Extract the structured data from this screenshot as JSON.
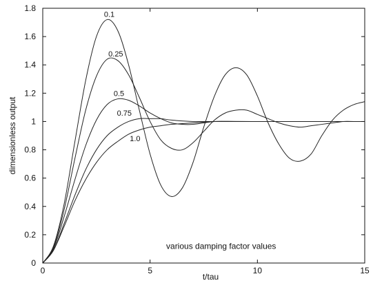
{
  "chart_data": {
    "type": "line",
    "title": "",
    "xlabel": "t/tau",
    "ylabel": "dimensionless output",
    "xlim": [
      0,
      15
    ],
    "ylim": [
      0,
      1.8
    ],
    "x_ticks": [
      0,
      5,
      10,
      15
    ],
    "x_tick_labels": [
      "0",
      "5",
      "10",
      "15"
    ],
    "y_ticks": [
      0,
      0.2,
      0.4,
      0.6,
      0.8,
      1.0,
      1.2,
      1.4,
      1.6,
      1.8
    ],
    "y_tick_labels": [
      "0",
      "0.2",
      "0.4",
      "0.6",
      "0.8",
      "1",
      "1.2",
      "1.4",
      "1.6",
      "1.8"
    ],
    "grid": false,
    "annotation": "various damping factor values",
    "series": [
      {
        "name": "0.1",
        "label": {
          "text": "0.1",
          "x": 3.1,
          "y": 1.74
        },
        "points": [
          [
            0,
            0
          ],
          [
            0.5,
            0.12
          ],
          [
            1,
            0.42
          ],
          [
            1.5,
            0.86
          ],
          [
            2,
            1.29
          ],
          [
            2.5,
            1.6
          ],
          [
            3.0,
            1.72
          ],
          [
            3.5,
            1.64
          ],
          [
            4.0,
            1.4
          ],
          [
            4.5,
            1.08
          ],
          [
            5.0,
            0.77
          ],
          [
            5.5,
            0.55
          ],
          [
            6.0,
            0.47
          ],
          [
            6.5,
            0.53
          ],
          [
            7.0,
            0.71
          ],
          [
            7.5,
            0.96
          ],
          [
            8.0,
            1.18
          ],
          [
            8.5,
            1.33
          ],
          [
            9.0,
            1.38
          ],
          [
            9.5,
            1.33
          ],
          [
            10.0,
            1.18
          ],
          [
            10.5,
            0.99
          ],
          [
            11.0,
            0.84
          ],
          [
            11.5,
            0.74
          ],
          [
            12.0,
            0.72
          ],
          [
            12.5,
            0.77
          ],
          [
            13.0,
            0.9
          ],
          [
            13.5,
            1.01
          ],
          [
            14.0,
            1.08
          ],
          [
            14.5,
            1.12
          ],
          [
            15.0,
            1.14
          ]
        ]
      },
      {
        "name": "0.25",
        "label": {
          "text": "0.25",
          "x": 3.4,
          "y": 1.46
        },
        "points": [
          [
            0,
            0
          ],
          [
            0.5,
            0.11
          ],
          [
            1,
            0.38
          ],
          [
            1.5,
            0.74
          ],
          [
            2,
            1.08
          ],
          [
            2.5,
            1.32
          ],
          [
            3.0,
            1.44
          ],
          [
            3.5,
            1.43
          ],
          [
            4.0,
            1.33
          ],
          [
            4.5,
            1.17
          ],
          [
            5.0,
            1.0
          ],
          [
            5.5,
            0.87
          ],
          [
            6.0,
            0.81
          ],
          [
            6.5,
            0.8
          ],
          [
            7.0,
            0.85
          ],
          [
            7.5,
            0.93
          ],
          [
            8.0,
            1.01
          ],
          [
            8.5,
            1.06
          ],
          [
            9.0,
            1.08
          ],
          [
            9.5,
            1.08
          ],
          [
            10.0,
            1.05
          ],
          [
            10.5,
            1.02
          ],
          [
            11.0,
            0.99
          ],
          [
            11.5,
            0.97
          ],
          [
            12.0,
            0.96
          ],
          [
            12.5,
            0.97
          ],
          [
            13.0,
            0.98
          ],
          [
            13.5,
            0.99
          ],
          [
            14.0,
            1.0
          ],
          [
            14.5,
            1.0
          ],
          [
            15.0,
            1.0
          ]
        ]
      },
      {
        "name": "0.5",
        "label": {
          "text": "0.5",
          "x": 3.55,
          "y": 1.18
        },
        "points": [
          [
            0,
            0
          ],
          [
            0.5,
            0.1
          ],
          [
            1,
            0.33
          ],
          [
            1.5,
            0.59
          ],
          [
            2,
            0.83
          ],
          [
            2.5,
            1.01
          ],
          [
            3.0,
            1.12
          ],
          [
            3.5,
            1.16
          ],
          [
            4.0,
            1.15
          ],
          [
            4.5,
            1.11
          ],
          [
            5.0,
            1.06
          ],
          [
            5.5,
            1.02
          ],
          [
            6.0,
            0.99
          ],
          [
            6.5,
            0.98
          ],
          [
            7.0,
            0.98
          ],
          [
            7.5,
            0.99
          ],
          [
            8.0,
            1.0
          ],
          [
            9.0,
            1.0
          ],
          [
            10.0,
            1.0
          ],
          [
            11.0,
            1.0
          ],
          [
            12.0,
            1.0
          ],
          [
            13.0,
            1.0
          ],
          [
            14.0,
            1.0
          ],
          [
            15.0,
            1.0
          ]
        ]
      },
      {
        "name": "0.75",
        "label": {
          "text": "0.75",
          "x": 3.8,
          "y": 1.04
        },
        "points": [
          [
            0,
            0
          ],
          [
            0.5,
            0.09
          ],
          [
            1,
            0.28
          ],
          [
            1.5,
            0.48
          ],
          [
            2,
            0.66
          ],
          [
            2.5,
            0.8
          ],
          [
            3.0,
            0.9
          ],
          [
            3.5,
            0.96
          ],
          [
            4.0,
            1.0
          ],
          [
            4.5,
            1.02
          ],
          [
            5.0,
            1.02
          ],
          [
            5.5,
            1.02
          ],
          [
            6.0,
            1.01
          ],
          [
            7.0,
            1.0
          ],
          [
            8.0,
            1.0
          ],
          [
            10.0,
            1.0
          ],
          [
            12.0,
            1.0
          ],
          [
            15.0,
            1.0
          ]
        ]
      },
      {
        "name": "1.0",
        "label": {
          "text": "1.0",
          "x": 4.3,
          "y": 0.86
        },
        "points": [
          [
            0,
            0
          ],
          [
            0.5,
            0.09
          ],
          [
            1,
            0.26
          ],
          [
            1.5,
            0.44
          ],
          [
            2,
            0.59
          ],
          [
            2.5,
            0.71
          ],
          [
            3.0,
            0.8
          ],
          [
            3.5,
            0.86
          ],
          [
            4.0,
            0.91
          ],
          [
            4.5,
            0.94
          ],
          [
            5.0,
            0.96
          ],
          [
            5.5,
            0.97
          ],
          [
            6.0,
            0.98
          ],
          [
            7.0,
            0.99
          ],
          [
            8.0,
            1.0
          ],
          [
            10.0,
            1.0
          ],
          [
            12.0,
            1.0
          ],
          [
            15.0,
            1.0
          ]
        ]
      }
    ]
  }
}
